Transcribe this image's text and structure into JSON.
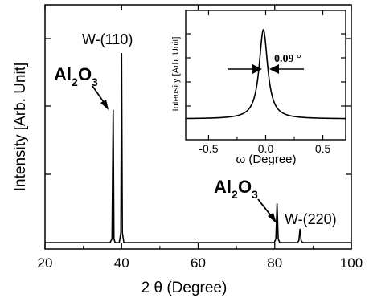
{
  "chart_data": [
    {
      "type": "line",
      "xlabel": "2 θ (Degree)",
      "ylabel": "Intensity [Arb. Unit]",
      "xlim": [
        20,
        100
      ],
      "x_ticks": [
        "20",
        "40",
        "60",
        "80",
        "100"
      ],
      "grid": false,
      "series": [
        {
          "x": [
            20,
            37.0,
            37.5,
            37.8,
            38.0,
            38.3,
            39.4,
            39.8,
            40.0,
            40.2,
            40.6,
            79.9,
            80.3,
            80.6,
            80.9,
            81.3,
            85.9,
            86.3,
            86.6,
            86.9,
            87.3,
            100
          ],
          "y": [
            0,
            0,
            0.02,
            0.68,
            0.02,
            0,
            0,
            0.05,
            0.97,
            0.05,
            0,
            0,
            0.02,
            0.2,
            0.02,
            0,
            0,
            0.01,
            0.07,
            0.01,
            0,
            0
          ]
        }
      ],
      "annotations": [
        {
          "label": "W-(110)",
          "x": 40.0
        },
        {
          "label": "W-(220)",
          "x": 86.6
        },
        {
          "label_main": "Al",
          "sub1": "2",
          "mid": "O",
          "sub2": "3",
          "x": 37.8
        },
        {
          "label_main": "Al",
          "sub1": "2",
          "mid": "O",
          "sub2": "3",
          "x": 80.6
        }
      ]
    },
    {
      "type": "line",
      "inset": true,
      "xlabel": "ω (Degree)",
      "ylabel": "Intensity [Arb. Unit]",
      "xlim": [
        -0.7,
        0.7
      ],
      "x_ticks": [
        "-0.5",
        "0.0",
        "0.5"
      ],
      "grid": false,
      "fwhm_label": "0.09 °",
      "series": [
        {
          "peak_center": -0.02,
          "fwhm": 0.09,
          "baseline": 0.05,
          "peak_height": 0.95
        }
      ]
    }
  ]
}
